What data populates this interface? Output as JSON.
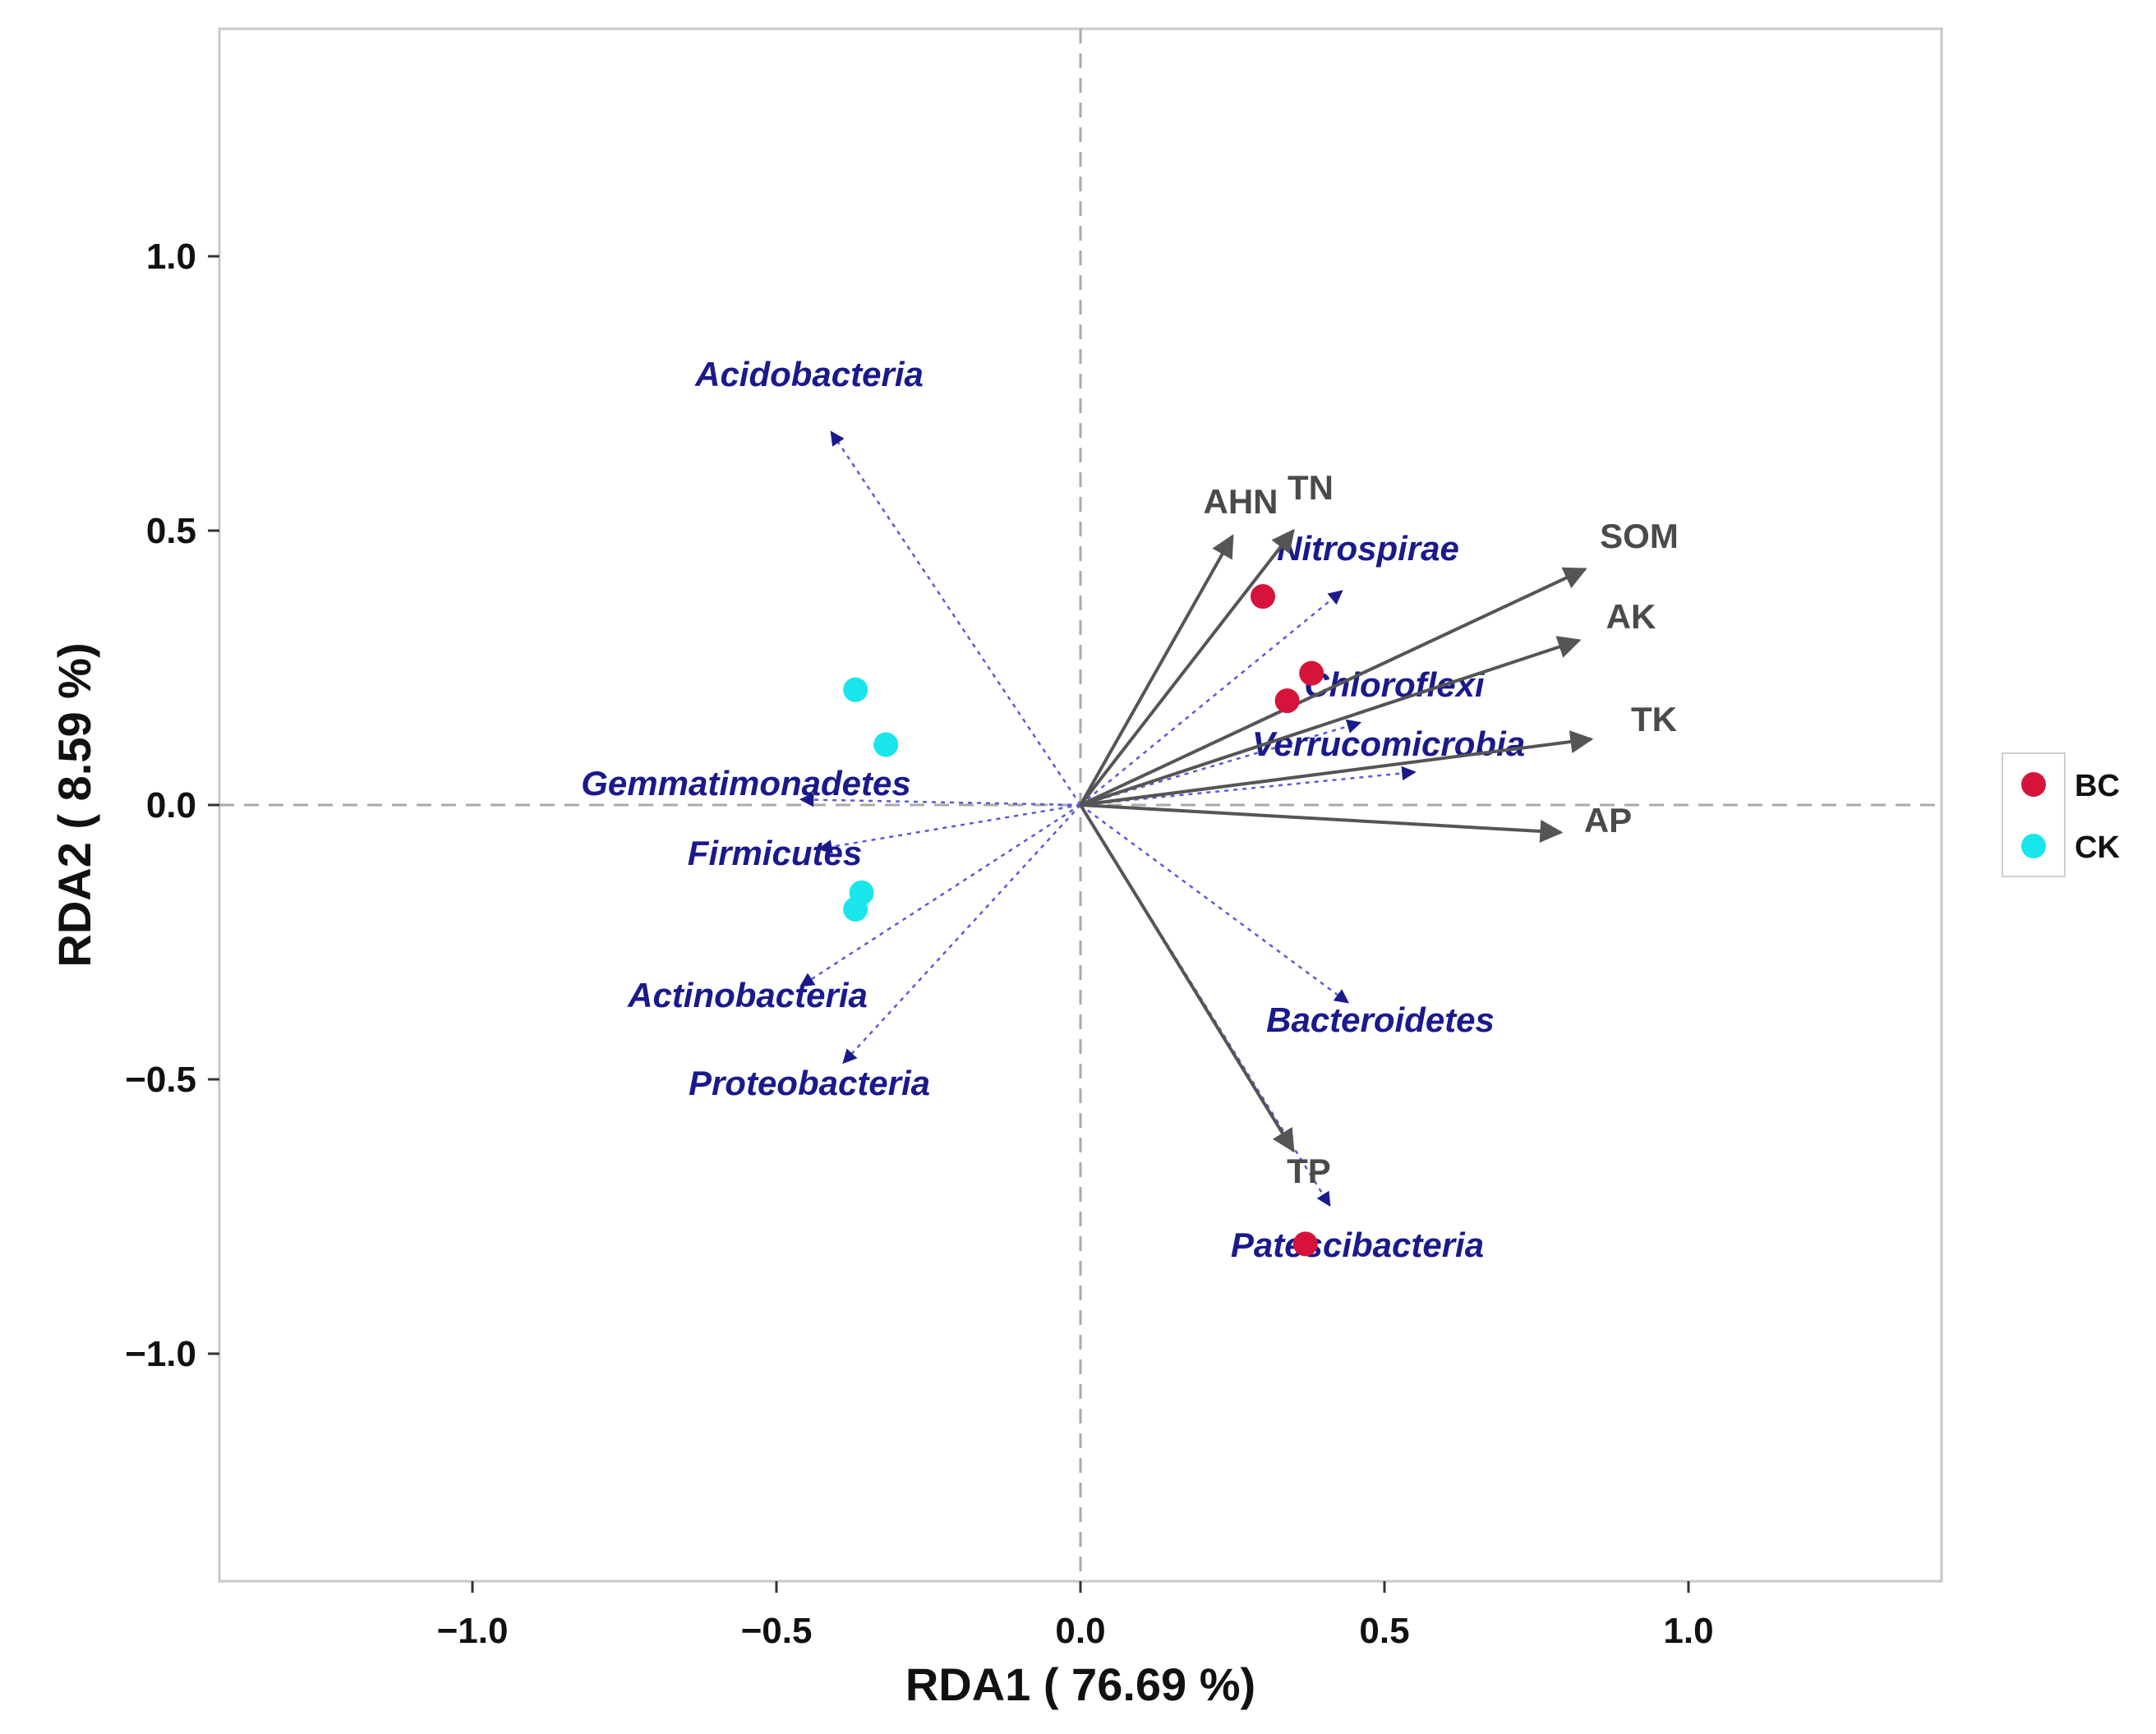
{
  "chart_data": {
    "type": "scatter",
    "subtype": "rda-biplot",
    "xlabel": "RDA1 ( 76.69 %)",
    "ylabel": "RDA2 ( 8.59 %)",
    "xlim": [
      -1.4,
      1.4
    ],
    "ylim": [
      -1.4,
      1.4
    ],
    "x_ticks": [
      -1.0,
      -0.5,
      0.0,
      0.5,
      1.0
    ],
    "x_tick_labels": [
      "−1.0",
      "−0.5",
      "0.0",
      "0.5",
      "1.0"
    ],
    "y_ticks": [
      1.0,
      0.5,
      0.0,
      -0.5,
      -1.0
    ],
    "y_tick_labels": [
      "1.0",
      "0.5",
      "0.0",
      "−0.5",
      "−1.0"
    ],
    "grid": false,
    "zero_lines": "dashed",
    "legend": {
      "placement": "right",
      "entries": [
        {
          "label": "BC",
          "color": "#d6133a"
        },
        {
          "label": "CK",
          "color": "#19e6ea"
        }
      ]
    },
    "env_arrows": [
      {
        "name": "AHN",
        "x": 0.25,
        "y": 0.49
      },
      {
        "name": "TN",
        "x": 0.35,
        "y": 0.5
      },
      {
        "name": "SOM",
        "x": 0.83,
        "y": 0.43
      },
      {
        "name": "AK",
        "x": 0.82,
        "y": 0.3
      },
      {
        "name": "TK",
        "x": 0.84,
        "y": 0.12
      },
      {
        "name": "AP",
        "x": 0.79,
        "y": -0.05
      },
      {
        "name": "TP",
        "x": 0.35,
        "y": -0.63
      }
    ],
    "taxa_arrows": [
      {
        "name": "Acidobacteria",
        "x": -0.41,
        "y": 0.68
      },
      {
        "name": "Nitrospirae",
        "x": 0.43,
        "y": 0.39
      },
      {
        "name": "Chloroflexi",
        "x": 0.46,
        "y": 0.15
      },
      {
        "name": "Verrucomicrobia",
        "x": 0.55,
        "y": 0.06
      },
      {
        "name": "Gemmatimonadetes",
        "x": -0.46,
        "y": 0.01
      },
      {
        "name": "Firmicutes",
        "x": -0.43,
        "y": -0.08
      },
      {
        "name": "Actinobacteria",
        "x": -0.46,
        "y": -0.33
      },
      {
        "name": "Proteobacteria",
        "x": -0.39,
        "y": -0.47
      },
      {
        "name": "Bacteroidetes",
        "x": 0.44,
        "y": -0.36
      },
      {
        "name": "Patescibacteria",
        "x": 0.41,
        "y": -0.73
      }
    ],
    "samples": [
      {
        "group": "BC",
        "x": 0.3,
        "y": 0.38
      },
      {
        "group": "BC",
        "x": 0.38,
        "y": 0.24
      },
      {
        "group": "BC",
        "x": 0.34,
        "y": 0.19
      },
      {
        "group": "BC",
        "x": 0.37,
        "y": -0.8
      },
      {
        "group": "CK",
        "x": -0.37,
        "y": 0.21
      },
      {
        "group": "CK",
        "x": -0.32,
        "y": 0.11
      },
      {
        "group": "CK",
        "x": -0.36,
        "y": -0.16
      },
      {
        "group": "CK",
        "x": -0.37,
        "y": -0.19
      }
    ],
    "colors": {
      "env_arrow": "#555555",
      "taxa_arrow": "#5a5ad6",
      "env_text": "#4a4a4a",
      "taxa_text": "#1a1a8c",
      "panel_border": "#c8c8c8",
      "zero_line": "#aaaaaa"
    }
  }
}
